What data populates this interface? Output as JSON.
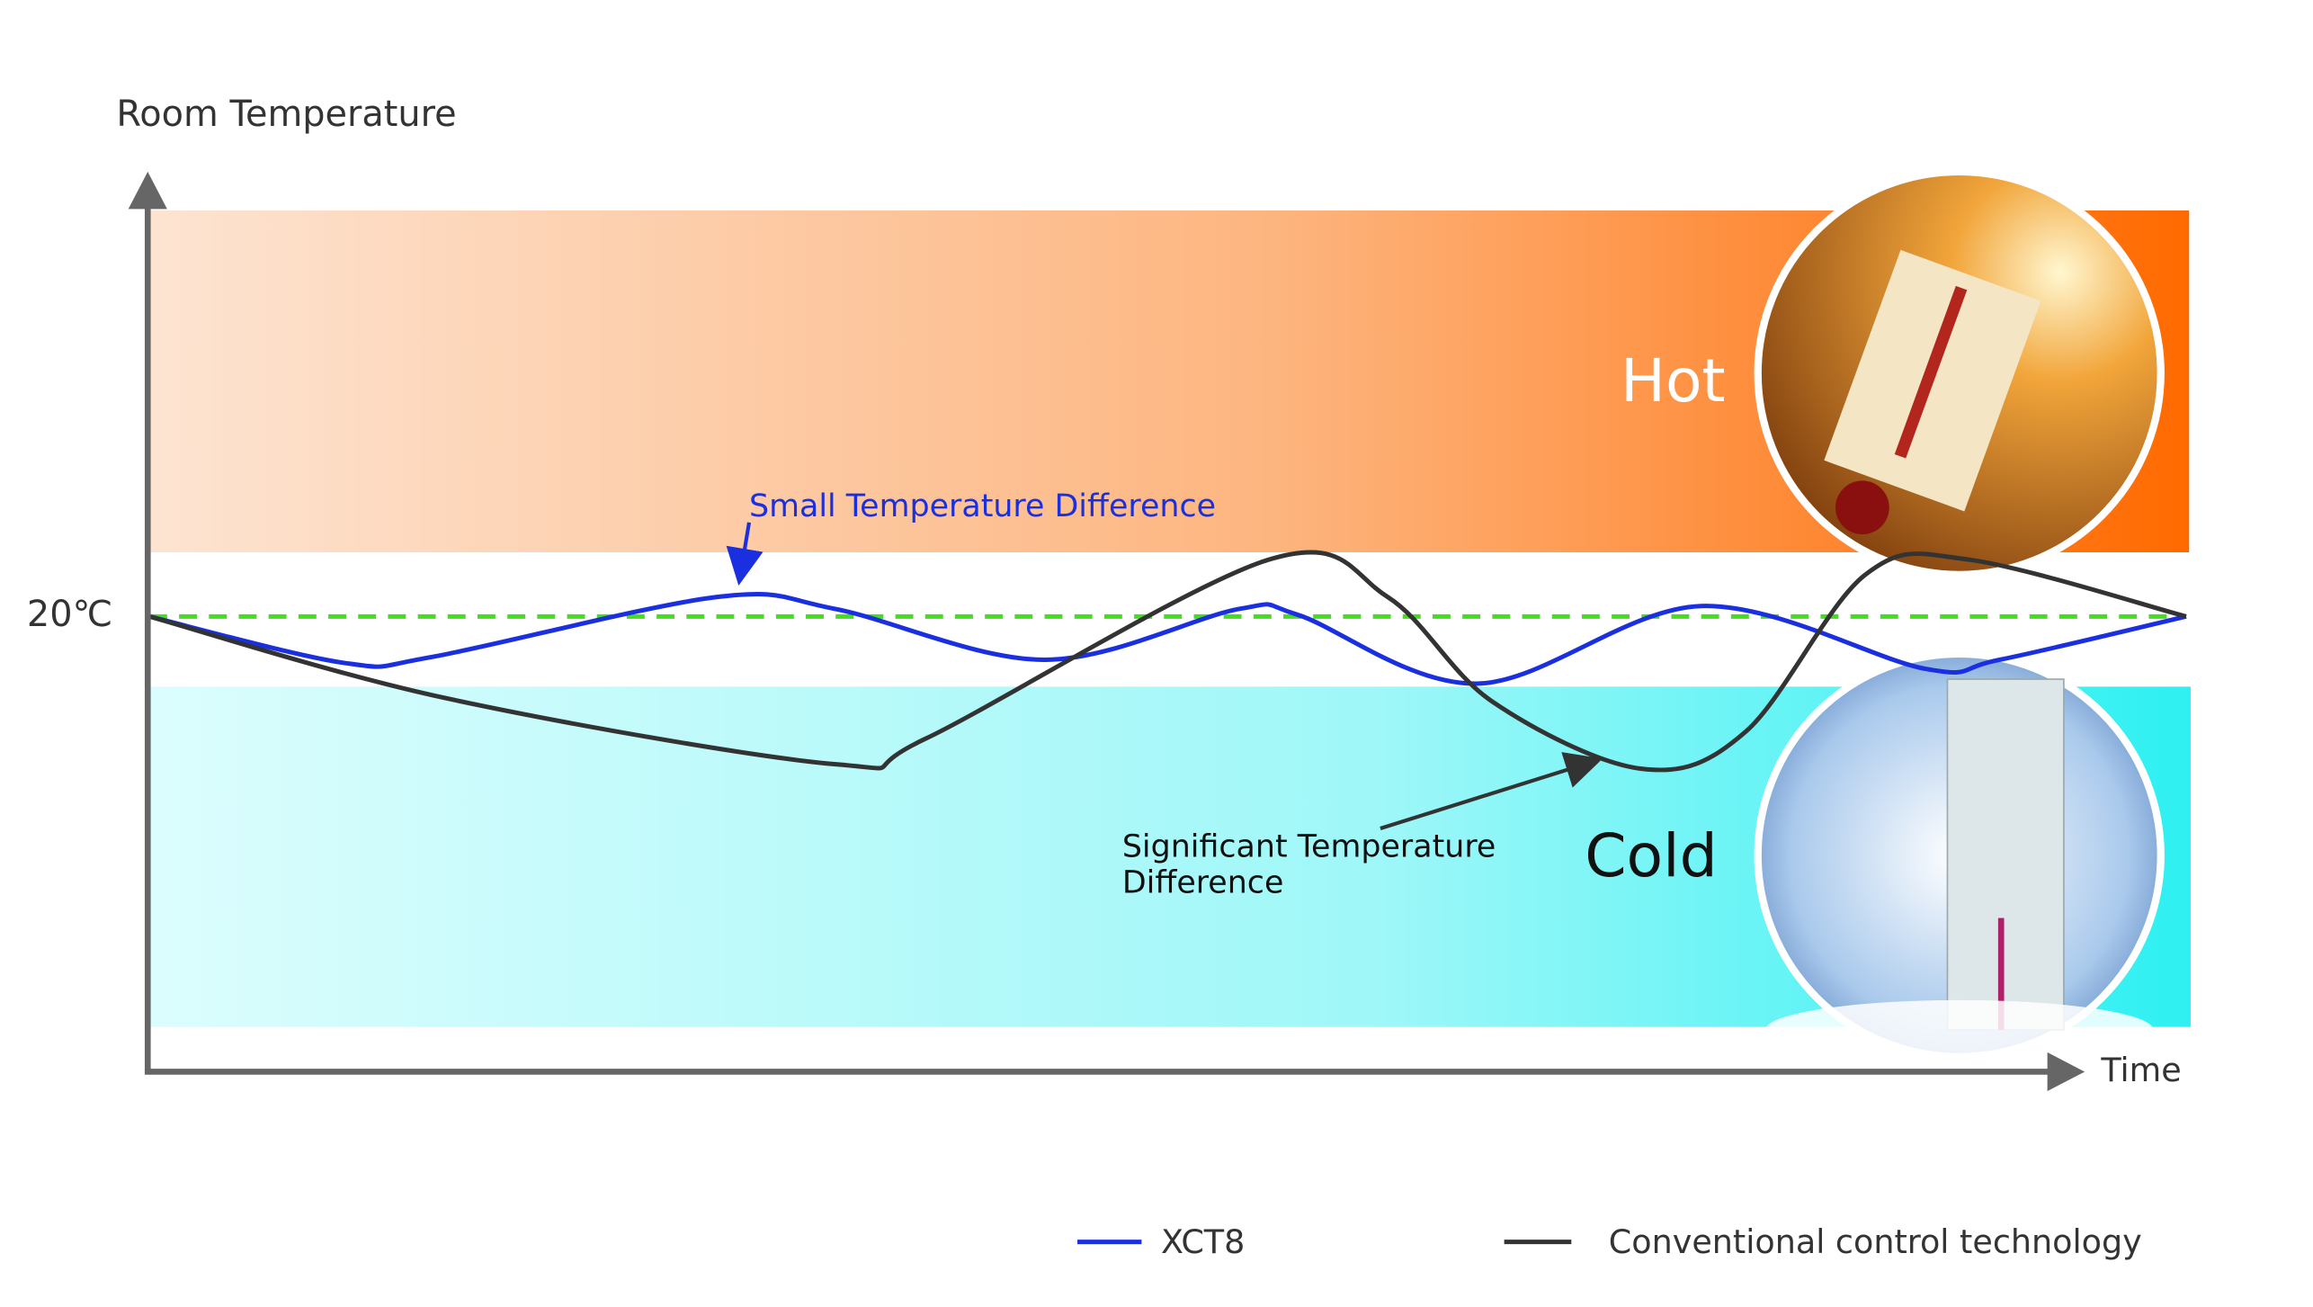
{
  "axes": {
    "y_label": "Room Temperature",
    "x_label": "Time",
    "reference": "20℃"
  },
  "zones": {
    "hot": "Hot",
    "cold": "Cold"
  },
  "annotations": {
    "small": "Small Temperature Difference",
    "significant": [
      "Significant Temperature",
      "Difference"
    ]
  },
  "legend": [
    {
      "name": "XCT8",
      "color": "#1a2fe0"
    },
    {
      "name": "Conventional control technology",
      "color": "#333333"
    }
  ]
}
